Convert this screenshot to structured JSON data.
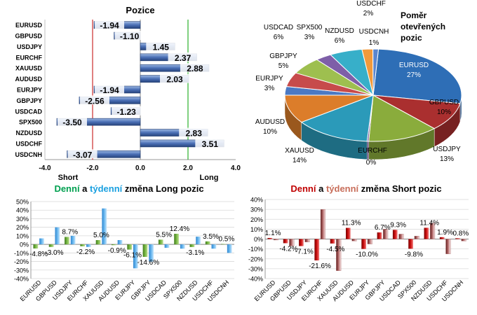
{
  "colors": {
    "bar_blue": "#4a6fb5",
    "long_green": "#6aa339",
    "weekly_blue": "#56a8e6",
    "short_red": "#c00000",
    "weekly_light": "#f2d8d8",
    "axis_red": "#c00000",
    "axis_green": "#00a000",
    "text": "#000000"
  },
  "chart_data": [
    {
      "type": "bar",
      "orientation": "horizontal",
      "title": "Pozice",
      "categories": [
        "EURUSD",
        "GBPUSD",
        "USDJPY",
        "EURCHF",
        "XAUUSD",
        "AUDUSD",
        "EURJPY",
        "GBPJPY",
        "USDCAD",
        "SPX500",
        "NZDUSD",
        "USDCHF",
        "USDCNH"
      ],
      "values": [
        -1.94,
        -1.1,
        1.45,
        2.37,
        2.88,
        2.03,
        -1.94,
        -2.56,
        -1.23,
        -3.5,
        2.83,
        3.51,
        -3.07
      ],
      "value_labels": [
        "-1.94",
        "-1.10",
        "1.45",
        "2.37",
        "2.88",
        "2.03",
        "-1.94",
        "-2.56",
        "-1.23",
        "-3.50",
        "2.83",
        "3.51",
        "-3.07"
      ],
      "xlim": [
        -4,
        4
      ],
      "x_ticks": [
        "-4.0",
        "-2.0",
        "0.0",
        "2.0",
        "4.0"
      ],
      "x_tick_values": [
        -4,
        -2,
        0,
        2,
        4
      ],
      "short_label": "Short",
      "long_label": "Long"
    },
    {
      "type": "pie",
      "title_lines": [
        "Poměr",
        "otevřených",
        "pozic"
      ],
      "slices": [
        {
          "name": "EURUSD",
          "label": "EURUSD",
          "pct": "27%",
          "value": 27,
          "color": "#2e6eb6"
        },
        {
          "name": "GBPUSD",
          "label": "GBPUSD",
          "pct": "10%",
          "value": 10,
          "color": "#aa2f2f"
        },
        {
          "name": "USDJPY",
          "label": "USDJPY",
          "pct": "13%",
          "value": 13,
          "color": "#8aac3c"
        },
        {
          "name": "EURCHF",
          "label": "EURCHF",
          "pct": "0%",
          "value": 0.3,
          "color": "#6f4f99"
        },
        {
          "name": "XAUUSD",
          "label": "XAUUSD",
          "pct": "14%",
          "value": 14,
          "color": "#2b9ab9"
        },
        {
          "name": "AUDUSD",
          "label": "AUDUSD",
          "pct": "10%",
          "value": 10,
          "color": "#dc7d2a"
        },
        {
          "name": "EURJPY",
          "label": "EURJPY",
          "pct": "3%",
          "value": 3,
          "color": "#4b79c4"
        },
        {
          "name": "GBPJPY",
          "label": "GBPJPY",
          "pct": "5%",
          "value": 5,
          "color": "#c74b4b"
        },
        {
          "name": "USDCAD",
          "label": "USDCAD",
          "pct": "6%",
          "value": 6,
          "color": "#9ebf4f"
        },
        {
          "name": "SPX500",
          "label": "SPX500",
          "pct": "3%",
          "value": 3,
          "color": "#7e5fa8"
        },
        {
          "name": "NZDUSD",
          "label": "NZDUSD",
          "pct": "6%",
          "value": 6,
          "color": "#37afc9"
        },
        {
          "name": "USDCHF",
          "label": "USDCHF",
          "pct": "2%",
          "value": 2,
          "color": "#f29a3b"
        },
        {
          "name": "USDCNH",
          "label": "USDCNH",
          "pct": "1%",
          "value": 1,
          "color": "#5a86cf"
        }
      ]
    },
    {
      "type": "bar",
      "title_parts": [
        "Denní",
        " a ",
        "týdenní",
        " změna Long pozic"
      ],
      "categories": [
        "EURUSD",
        "GBPUSD",
        "USDJPY",
        "EURCHF",
        "XAUUSD",
        "AUDUSD",
        "EURJPY",
        "GBPJPY",
        "USDCAD",
        "SPX500",
        "NZDUSD",
        "USDCHF",
        "USDCNH"
      ],
      "series": [
        {
          "name": "Denní",
          "values": [
            -4.8,
            -3.0,
            8.7,
            -2.2,
            5.0,
            -0.9,
            -6.1,
            -14.6,
            5.5,
            12.4,
            -3.1,
            3.5,
            0.5
          ]
        },
        {
          "name": "týdenní",
          "values": [
            7.0,
            20.0,
            10.0,
            -3.0,
            42.0,
            5.0,
            -28.0,
            -20.0,
            -4.0,
            -5.0,
            9.0,
            -5.0,
            -10.0
          ]
        }
      ],
      "labels": [
        "-4.8%",
        "-3.0%",
        "8.7%",
        "-2.2%",
        "5.0%",
        "-0.9%",
        "-6.1%",
        "-14.6%",
        "5.5%",
        "12.4%",
        "-3.1%",
        "3.5%",
        "0.5%"
      ],
      "ylim": [
        -40,
        50
      ],
      "y_ticks": [
        "50%",
        "40%",
        "30%",
        "20%",
        "10%",
        "0%",
        "-10%",
        "-20%",
        "-30%",
        "-40%"
      ],
      "y_tick_values": [
        50,
        40,
        30,
        20,
        10,
        0,
        -10,
        -20,
        -30,
        -40
      ]
    },
    {
      "type": "bar",
      "title_parts": [
        "Denní",
        " a ",
        "týdenní",
        " změna Short pozic"
      ],
      "categories": [
        "EURUSD",
        "GBPUSD",
        "USDJPY",
        "EURCHF",
        "XAUUSD",
        "AUDUSD",
        "EURJPY",
        "GBPJPY",
        "USDCAD",
        "SPX500",
        "NZDUSD",
        "USDCHF",
        "USDCNH"
      ],
      "series": [
        {
          "name": "Denní",
          "values": [
            1.1,
            -4.2,
            -7.1,
            -21.6,
            -4.5,
            11.3,
            -10.0,
            6.7,
            9.3,
            -9.8,
            11.4,
            1.9,
            0.8
          ]
        },
        {
          "name": "týdenní",
          "values": [
            -1.0,
            -7.0,
            -3.0,
            30.0,
            -32.0,
            -2.0,
            -5.0,
            10.0,
            5.0,
            3.0,
            16.0,
            -15.0,
            -2.0
          ]
        }
      ],
      "labels": [
        "1.1%",
        "-4.2%",
        "-7.1%",
        "-21.6%",
        "-4.5%",
        "11.3%",
        "-10.0%",
        "6.7%",
        "9.3%",
        "-9.8%",
        "11.4%",
        "1.9%",
        "0.8%"
      ],
      "ylim": [
        -40,
        40
      ],
      "y_ticks": [
        "40%",
        "30%",
        "20%",
        "10%",
        "0%",
        "-10%",
        "-20%",
        "-30%",
        "-40%"
      ],
      "y_tick_values": [
        40,
        30,
        20,
        10,
        0,
        -10,
        -20,
        -30,
        -40
      ]
    }
  ]
}
